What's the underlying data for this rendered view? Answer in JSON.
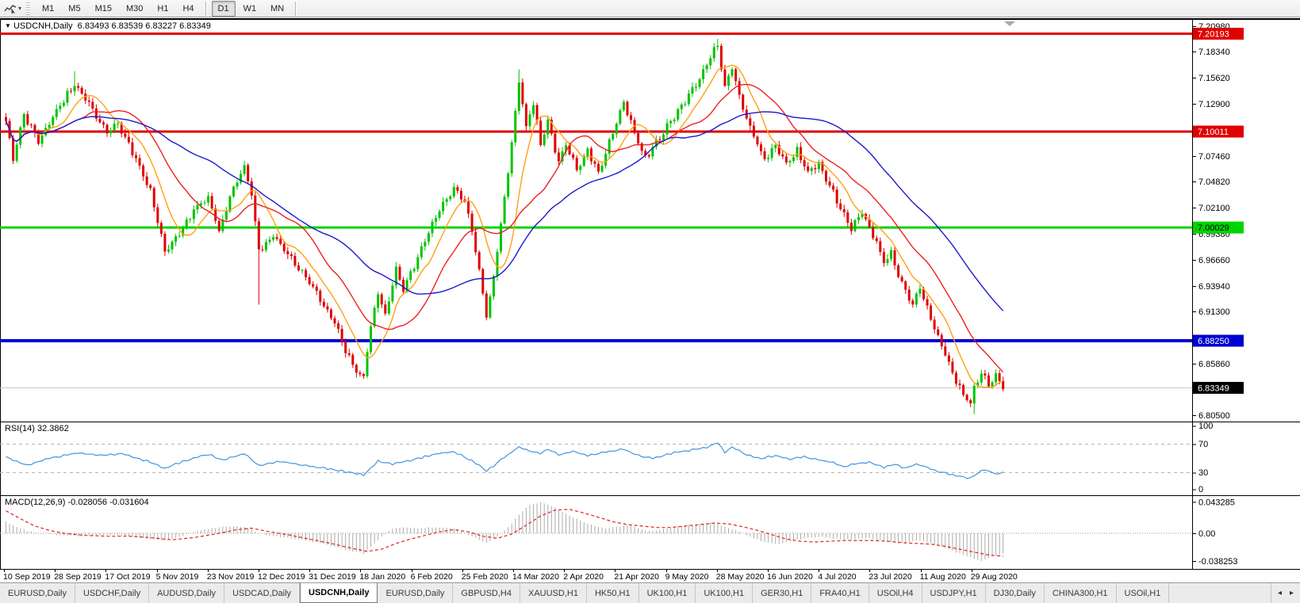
{
  "toolbar": {
    "timeframes": [
      "M1",
      "M5",
      "M15",
      "M30",
      "H1",
      "H4",
      "D1",
      "W1",
      "MN"
    ],
    "active_timeframe": "D1",
    "cursor_caret": "▾"
  },
  "chart_header": {
    "expander": "▼",
    "symbol": "USDCNH,Daily",
    "ohlc": "6.83493 6.83539 6.83227 6.83349"
  },
  "chart_data": {
    "type": "candlestick",
    "symbol": "USDCNH",
    "timeframe": "Daily",
    "title": "USDCNH,Daily  6.83493 6.83539 6.83227 6.83349",
    "bars_total": 277,
    "x_labels": [
      "10 Sep 2019",
      "28 Sep 2019",
      "17 Oct 2019",
      "5 Nov 2019",
      "23 Nov 2019",
      "12 Dec 2019",
      "31 Dec 2019",
      "18 Jan 2020",
      "6 Feb 2020",
      "25 Feb 2020",
      "14 Mar 2020",
      "2 Apr 2020",
      "21 Apr 2020",
      "9 May 2020",
      "28 May 2020",
      "16 Jun 2020",
      "4 Jul 2020",
      "23 Jul 2020",
      "11 Aug 2020",
      "29 Aug 2020"
    ],
    "y_axis": {
      "max": 7.21804,
      "min": 6.79841,
      "ticks": [
        "7.20980",
        "7.18340",
        "7.15620",
        "7.12900",
        "7.07460",
        "7.04820",
        "7.02100",
        "6.99380",
        "6.96660",
        "6.93940",
        "6.91300",
        "6.85860",
        "6.80500"
      ]
    },
    "hlines": [
      {
        "price": 7.20193,
        "label": "7.20193",
        "color": "#e00000",
        "thickness": 3,
        "badge_bg": "#e00000",
        "badge_fg": "#ffffff"
      },
      {
        "price": 7.10011,
        "label": "7.10011",
        "color": "#e00000",
        "thickness": 3,
        "badge_bg": "#e00000",
        "badge_fg": "#ffffff"
      },
      {
        "price": 7.00029,
        "label": "7.00029",
        "color": "#00d400",
        "thickness": 3,
        "badge_bg": "#00d400",
        "badge_fg": "#000000"
      },
      {
        "price": 6.8825,
        "label": "6.88250",
        "color": "#0000d4",
        "thickness": 4,
        "badge_bg": "#0000d4",
        "badge_fg": "#ffffff"
      },
      {
        "price": 6.83349,
        "label": "6.83349",
        "color": "#c6c6c6",
        "thickness": 1,
        "badge_bg": "#000000",
        "badge_fg": "#ffffff",
        "role": "current-price"
      }
    ],
    "candle_colors": {
      "bull": "#00c400",
      "bear": "#e00000"
    },
    "close_anchors": [
      [
        0,
        7.11
      ],
      [
        2,
        7.072
      ],
      [
        5,
        7.118
      ],
      [
        9,
        7.09
      ],
      [
        14,
        7.122
      ],
      [
        19,
        7.149
      ],
      [
        24,
        7.124
      ],
      [
        28,
        7.098
      ],
      [
        31,
        7.108
      ],
      [
        36,
        7.072
      ],
      [
        40,
        7.038
      ],
      [
        44,
        6.974
      ],
      [
        48,
        6.995
      ],
      [
        52,
        7.018
      ],
      [
        56,
        7.032
      ],
      [
        59,
        6.996
      ],
      [
        63,
        7.042
      ],
      [
        66,
        7.062
      ],
      [
        68,
        7.035
      ],
      [
        70,
        6.976
      ],
      [
        74,
        6.992
      ],
      [
        79,
        6.968
      ],
      [
        83,
        6.948
      ],
      [
        87,
        6.926
      ],
      [
        91,
        6.9
      ],
      [
        94,
        6.872
      ],
      [
        97,
        6.85
      ],
      [
        99,
        6.845
      ],
      [
        101,
        6.898
      ],
      [
        103,
        6.933
      ],
      [
        105,
        6.91
      ],
      [
        108,
        6.958
      ],
      [
        110,
        6.936
      ],
      [
        113,
        6.96
      ],
      [
        116,
        6.986
      ],
      [
        119,
        7.012
      ],
      [
        124,
        7.04
      ],
      [
        127,
        7.028
      ],
      [
        129,
        6.996
      ],
      [
        131,
        6.956
      ],
      [
        133,
        6.908
      ],
      [
        135,
        6.948
      ],
      [
        137,
        7.004
      ],
      [
        139,
        7.058
      ],
      [
        141,
        7.118
      ],
      [
        142,
        7.152
      ],
      [
        144,
        7.104
      ],
      [
        146,
        7.13
      ],
      [
        148,
        7.086
      ],
      [
        150,
        7.11
      ],
      [
        153,
        7.068
      ],
      [
        155,
        7.086
      ],
      [
        158,
        7.06
      ],
      [
        161,
        7.08
      ],
      [
        164,
        7.056
      ],
      [
        167,
        7.09
      ],
      [
        171,
        7.132
      ],
      [
        174,
        7.098
      ],
      [
        177,
        7.072
      ],
      [
        181,
        7.094
      ],
      [
        185,
        7.116
      ],
      [
        189,
        7.138
      ],
      [
        193,
        7.162
      ],
      [
        196,
        7.186
      ],
      [
        197,
        7.19
      ],
      [
        199,
        7.146
      ],
      [
        201,
        7.166
      ],
      [
        204,
        7.124
      ],
      [
        207,
        7.096
      ],
      [
        210,
        7.07
      ],
      [
        213,
        7.086
      ],
      [
        216,
        7.066
      ],
      [
        219,
        7.08
      ],
      [
        222,
        7.058
      ],
      [
        225,
        7.066
      ],
      [
        228,
        7.044
      ],
      [
        231,
        7.02
      ],
      [
        234,
        7.0
      ],
      [
        237,
        7.016
      ],
      [
        239,
        7.0
      ],
      [
        241,
        6.984
      ],
      [
        243,
        6.964
      ],
      [
        245,
        6.974
      ],
      [
        247,
        6.95
      ],
      [
        249,
        6.934
      ],
      [
        251,
        6.92
      ],
      [
        253,
        6.938
      ],
      [
        255,
        6.916
      ],
      [
        257,
        6.896
      ],
      [
        259,
        6.878
      ],
      [
        261,
        6.858
      ],
      [
        263,
        6.842
      ],
      [
        265,
        6.826
      ],
      [
        267,
        6.818
      ],
      [
        268,
        6.834
      ],
      [
        270,
        6.85
      ],
      [
        272,
        6.836
      ],
      [
        274,
        6.848
      ],
      [
        276,
        6.8335
      ]
    ],
    "wick_overrides": [
      {
        "i": 19,
        "high": 7.163
      },
      {
        "i": 70,
        "low": 6.92
      },
      {
        "i": 99,
        "low": 6.843
      },
      {
        "i": 142,
        "high": 7.165
      },
      {
        "i": 197,
        "high": 7.1965
      },
      {
        "i": 268,
        "low": 6.806
      }
    ],
    "moving_averages": [
      {
        "name": "fast",
        "window": 9,
        "color": "#ffa013"
      },
      {
        "name": "mid",
        "window": 21,
        "color": "#ee2020"
      },
      {
        "name": "slow",
        "window": 45,
        "color": "#1a1ad0"
      }
    ],
    "rsi": {
      "label": "RSI(14)",
      "value": "32.3862",
      "color": "#4493df",
      "levels": [
        70,
        30
      ],
      "ticks": [
        "100",
        "70",
        "30",
        "0"
      ],
      "range": [
        0,
        100
      ],
      "anchors": [
        [
          0,
          52
        ],
        [
          6,
          40
        ],
        [
          12,
          50
        ],
        [
          20,
          58
        ],
        [
          26,
          54
        ],
        [
          32,
          57
        ],
        [
          38,
          48
        ],
        [
          44,
          36
        ],
        [
          48,
          44
        ],
        [
          56,
          56
        ],
        [
          60,
          47
        ],
        [
          66,
          57
        ],
        [
          70,
          40
        ],
        [
          76,
          46
        ],
        [
          83,
          40
        ],
        [
          91,
          34
        ],
        [
          99,
          27
        ],
        [
          103,
          46
        ],
        [
          107,
          42
        ],
        [
          113,
          49
        ],
        [
          120,
          57
        ],
        [
          124,
          59
        ],
        [
          127,
          52
        ],
        [
          131,
          40
        ],
        [
          133,
          32
        ],
        [
          137,
          48
        ],
        [
          142,
          66
        ],
        [
          145,
          60
        ],
        [
          148,
          57
        ],
        [
          150,
          63
        ],
        [
          153,
          55
        ],
        [
          157,
          60
        ],
        [
          161,
          54
        ],
        [
          165,
          58
        ],
        [
          171,
          63
        ],
        [
          175,
          54
        ],
        [
          179,
          50
        ],
        [
          185,
          58
        ],
        [
          190,
          62
        ],
        [
          194,
          66
        ],
        [
          197,
          72
        ],
        [
          199,
          58
        ],
        [
          201,
          66
        ],
        [
          205,
          55
        ],
        [
          209,
          50
        ],
        [
          213,
          54
        ],
        [
          217,
          49
        ],
        [
          221,
          52
        ],
        [
          225,
          48
        ],
        [
          229,
          44
        ],
        [
          232,
          38
        ],
        [
          235,
          42
        ],
        [
          239,
          45
        ],
        [
          243,
          38
        ],
        [
          246,
          42
        ],
        [
          249,
          36
        ],
        [
          252,
          42
        ],
        [
          255,
          37
        ],
        [
          258,
          32
        ],
        [
          261,
          28
        ],
        [
          264,
          25
        ],
        [
          267,
          22
        ],
        [
          269,
          30
        ],
        [
          271,
          34
        ],
        [
          273,
          30
        ],
        [
          275,
          28
        ],
        [
          276,
          32.4
        ]
      ]
    },
    "macd": {
      "label": "MACD(12,26,9)",
      "values": "-0.028056 -0.031604",
      "hist_color": "#ababab",
      "signal_color": "#e02020",
      "ticks": [
        "0.043285",
        "0.00",
        "-0.038253"
      ],
      "hist_anchors": [
        [
          0,
          0.016
        ],
        [
          3,
          0.009
        ],
        [
          6,
          0.003
        ],
        [
          10,
          0.0
        ],
        [
          14,
          -0.002
        ],
        [
          20,
          -0.004
        ],
        [
          25,
          -0.003
        ],
        [
          30,
          -0.002
        ],
        [
          34,
          -0.004
        ],
        [
          40,
          -0.008
        ],
        [
          44,
          -0.01
        ],
        [
          48,
          -0.005
        ],
        [
          52,
          0.002
        ],
        [
          56,
          0.006
        ],
        [
          60,
          0.009
        ],
        [
          64,
          0.01
        ],
        [
          67,
          0.007
        ],
        [
          70,
          0.0
        ],
        [
          74,
          -0.004
        ],
        [
          79,
          -0.007
        ],
        [
          84,
          -0.011
        ],
        [
          90,
          -0.017
        ],
        [
          95,
          -0.024
        ],
        [
          99,
          -0.028
        ],
        [
          102,
          -0.014
        ],
        [
          104,
          -0.004
        ],
        [
          107,
          0.006
        ],
        [
          110,
          0.008
        ],
        [
          114,
          0.007
        ],
        [
          118,
          0.008
        ],
        [
          122,
          0.008
        ],
        [
          125,
          0.005
        ],
        [
          128,
          -0.002
        ],
        [
          131,
          -0.009
        ],
        [
          133,
          -0.013
        ],
        [
          136,
          -0.005
        ],
        [
          139,
          0.008
        ],
        [
          142,
          0.026
        ],
        [
          145,
          0.039
        ],
        [
          148,
          0.0433
        ],
        [
          151,
          0.038
        ],
        [
          154,
          0.03
        ],
        [
          157,
          0.022
        ],
        [
          160,
          0.015
        ],
        [
          163,
          0.01
        ],
        [
          166,
          0.007
        ],
        [
          169,
          0.009
        ],
        [
          172,
          0.011
        ],
        [
          175,
          0.007
        ],
        [
          178,
          0.003
        ],
        [
          181,
          0.005
        ],
        [
          185,
          0.008
        ],
        [
          189,
          0.011
        ],
        [
          193,
          0.013
        ],
        [
          196,
          0.015
        ],
        [
          199,
          0.009
        ],
        [
          202,
          0.005
        ],
        [
          205,
          -0.003
        ],
        [
          208,
          -0.009
        ],
        [
          211,
          -0.013
        ],
        [
          214,
          -0.015
        ],
        [
          217,
          -0.011
        ],
        [
          220,
          -0.008
        ],
        [
          223,
          -0.006
        ],
        [
          226,
          -0.005
        ],
        [
          229,
          -0.007
        ],
        [
          232,
          -0.009
        ],
        [
          235,
          -0.008
        ],
        [
          238,
          -0.006
        ],
        [
          241,
          -0.009
        ],
        [
          244,
          -0.012
        ],
        [
          247,
          -0.014
        ],
        [
          250,
          -0.012
        ],
        [
          253,
          -0.01
        ],
        [
          256,
          -0.014
        ],
        [
          259,
          -0.019
        ],
        [
          262,
          -0.024
        ],
        [
          265,
          -0.03
        ],
        [
          268,
          -0.035
        ],
        [
          270,
          -0.0382
        ],
        [
          272,
          -0.034
        ],
        [
          274,
          -0.031
        ],
        [
          276,
          -0.028056
        ]
      ],
      "signal_anchors": [
        [
          0,
          0.031
        ],
        [
          4,
          0.02
        ],
        [
          8,
          0.01
        ],
        [
          12,
          0.004
        ],
        [
          16,
          0.0
        ],
        [
          22,
          -0.003
        ],
        [
          28,
          -0.004
        ],
        [
          34,
          -0.004
        ],
        [
          40,
          -0.006
        ],
        [
          46,
          -0.009
        ],
        [
          52,
          -0.006
        ],
        [
          58,
          -0.001
        ],
        [
          64,
          0.005
        ],
        [
          68,
          0.007
        ],
        [
          72,
          0.003
        ],
        [
          78,
          -0.002
        ],
        [
          84,
          -0.008
        ],
        [
          90,
          -0.014
        ],
        [
          96,
          -0.021
        ],
        [
          100,
          -0.025
        ],
        [
          104,
          -0.022
        ],
        [
          108,
          -0.014
        ],
        [
          112,
          -0.008
        ],
        [
          116,
          -0.003
        ],
        [
          120,
          0.002
        ],
        [
          124,
          0.005
        ],
        [
          128,
          0.002
        ],
        [
          132,
          -0.004
        ],
        [
          136,
          -0.007
        ],
        [
          140,
          -0.001
        ],
        [
          144,
          0.011
        ],
        [
          148,
          0.024
        ],
        [
          152,
          0.032
        ],
        [
          156,
          0.033
        ],
        [
          160,
          0.028
        ],
        [
          164,
          0.022
        ],
        [
          168,
          0.016
        ],
        [
          172,
          0.012
        ],
        [
          176,
          0.01
        ],
        [
          180,
          0.008
        ],
        [
          184,
          0.008
        ],
        [
          188,
          0.01
        ],
        [
          192,
          0.012
        ],
        [
          196,
          0.014
        ],
        [
          200,
          0.013
        ],
        [
          204,
          0.009
        ],
        [
          208,
          0.004
        ],
        [
          212,
          -0.002
        ],
        [
          216,
          -0.008
        ],
        [
          220,
          -0.011
        ],
        [
          224,
          -0.012
        ],
        [
          228,
          -0.011
        ],
        [
          232,
          -0.01
        ],
        [
          236,
          -0.01
        ],
        [
          240,
          -0.01
        ],
        [
          244,
          -0.011
        ],
        [
          248,
          -0.013
        ],
        [
          252,
          -0.014
        ],
        [
          256,
          -0.015
        ],
        [
          260,
          -0.018
        ],
        [
          264,
          -0.022
        ],
        [
          268,
          -0.026
        ],
        [
          272,
          -0.03
        ],
        [
          276,
          -0.031604
        ]
      ]
    }
  },
  "tabs": {
    "items": [
      "EURUSD,Daily",
      "USDCHF,Daily",
      "AUDUSD,Daily",
      "USDCAD,Daily",
      "USDCNH,Daily",
      "EURUSD,Daily",
      "GBPUSD,H4",
      "XAUUSD,H1",
      "HK50,H1",
      "UK100,H1",
      "UK100,H1",
      "GER30,H1",
      "FRA40,H1",
      "USOil,H4",
      "USDJPY,H1",
      "DJ30,Daily",
      "CHINA300,H1",
      "USOil,H1"
    ],
    "active_index": 4,
    "scroll_left": "◂",
    "scroll_right": "▸"
  }
}
